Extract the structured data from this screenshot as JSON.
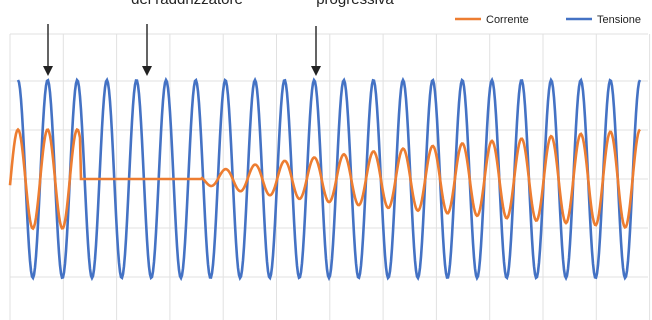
{
  "chart_data": {
    "type": "line",
    "title": "",
    "xlabel": "",
    "ylabel": "",
    "ylim": [
      -1.1,
      1.1
    ],
    "grid": true,
    "legend_position": "top-right",
    "series": [
      {
        "name": "Corrente",
        "color": "#ed7d31"
      },
      {
        "name": "Tensione",
        "color": "#4472c4"
      }
    ],
    "annotations": [
      {
        "text": "del raddrizzatore",
        "arrow_x_cycle": 1.0
      },
      {
        "text": "progressiva",
        "arrow_x_cycle": 5.5
      }
    ],
    "arrows_at_cycles": [
      0.0,
      4.0,
      9.8
    ],
    "signal_model": {
      "tensione": {
        "amplitude": 1.0,
        "cycles": 21
      },
      "corrente": {
        "cycles": 21,
        "segments": [
          {
            "from_cycle": 0,
            "to_cycle": 2.1,
            "amplitude": 0.5
          },
          {
            "from_cycle": 2.1,
            "to_cycle": 6.2,
            "amplitude": 0.0
          },
          {
            "from_cycle": 6.2,
            "to_cycle": 21,
            "amplitude_start": 0.04,
            "amplitude_end": 0.5
          }
        ]
      }
    }
  }
}
